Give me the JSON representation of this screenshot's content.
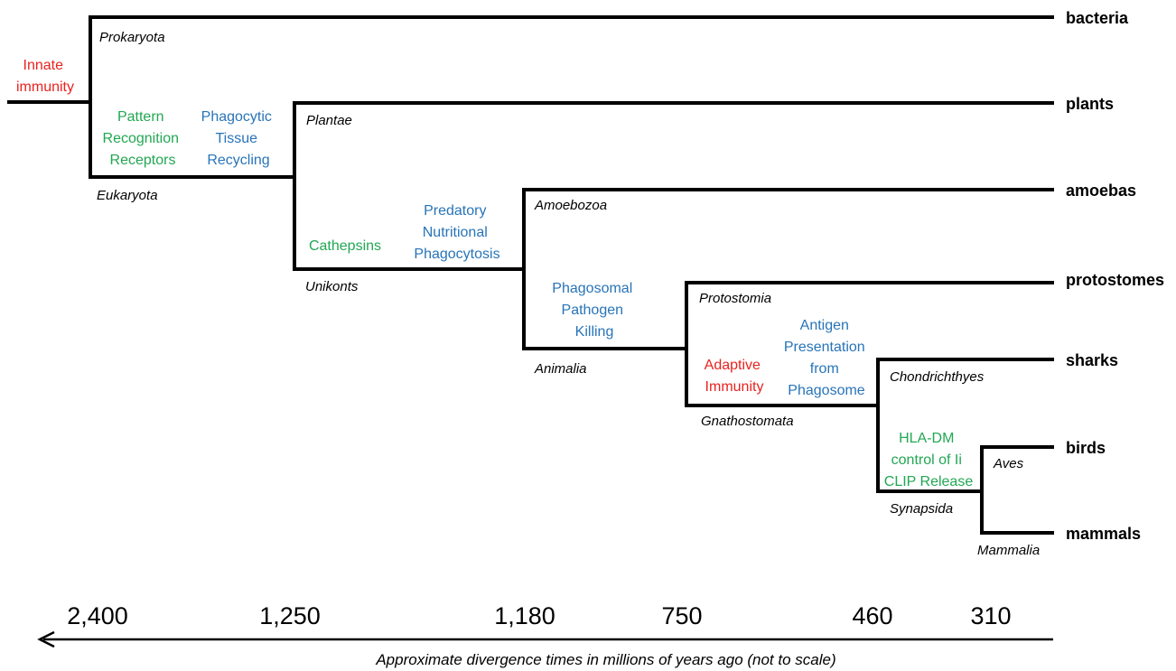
{
  "leaves": {
    "bacteria": "bacteria",
    "plants": "plants",
    "amoebas": "amoebas",
    "protostomes": "protostomes",
    "sharks": "sharks",
    "birds": "birds",
    "mammals": "mammals"
  },
  "taxa": {
    "prokaryota": "Prokaryota",
    "eukaryota": "Eukaryota",
    "plantae": "Plantae",
    "unikonts": "Unikonts",
    "amoebozoa": "Amoebozoa",
    "animalia": "Animalia",
    "protostomia": "Protostomia",
    "gnathostomata": "Gnathostomata",
    "chondrichthyes": "Chondrichthyes",
    "synapsida": "Synapsida",
    "aves": "Aves",
    "mammalia": "Mammalia"
  },
  "traits": {
    "innate": [
      "Innate",
      "immunity"
    ],
    "prr": [
      "Pattern",
      "Recognition",
      "Receptors"
    ],
    "phagocytic": [
      "Phagocytic",
      "Tissue",
      "Recycling"
    ],
    "cathepsins": [
      "Cathepsins"
    ],
    "predatory": [
      "Predatory",
      "Nutritional",
      "Phagocytosis"
    ],
    "phagosomal": [
      "Phagosomal",
      "Pathogen",
      "Killing"
    ],
    "adaptive": [
      "Adaptive",
      "Immunity"
    ],
    "antigen": [
      "Antigen",
      "Presentation",
      "from",
      "Phagosome"
    ],
    "hladm": [
      "HLA-DM",
      "control of Ii",
      "CLIP Release"
    ]
  },
  "timeline": {
    "ticks": [
      "2,400",
      "1,250",
      "1,180",
      "750",
      "460",
      "310"
    ],
    "caption": "Approximate divergence times in millions of years ago (not to scale)"
  },
  "colors": {
    "red": "#e8231f",
    "green": "#22a753",
    "blue": "#2874b8",
    "line": "#000000"
  }
}
